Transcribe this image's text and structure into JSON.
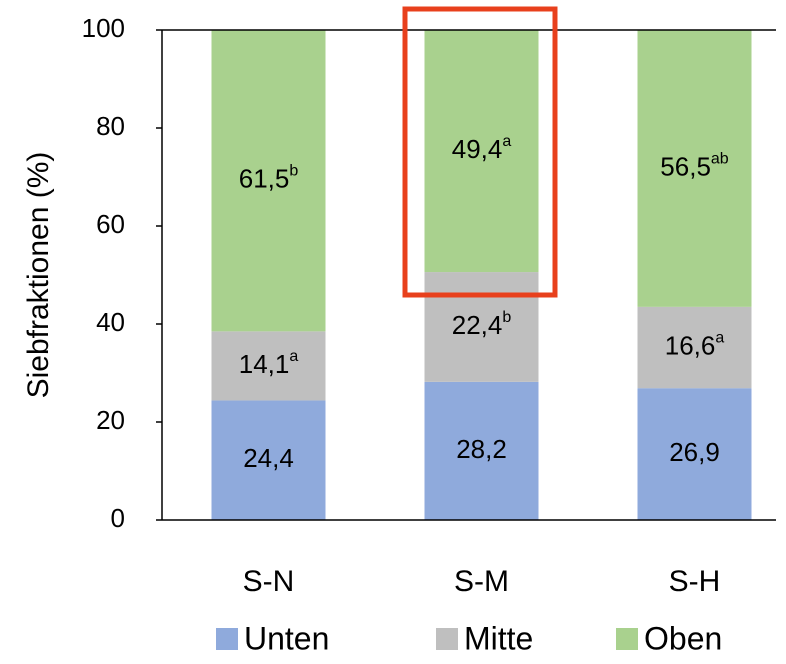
{
  "chart_data": {
    "type": "stacked_bar",
    "y_label": "Siebfraktionen (%)",
    "categories": [
      "S-N",
      "S-M",
      "S-H"
    ],
    "series": [
      {
        "name": "Unten",
        "color": "#8faadc",
        "values": [
          24.4,
          28.2,
          26.9
        ],
        "value_labels": [
          "24,4",
          "28,2",
          "26,9"
        ]
      },
      {
        "name": "Mitte",
        "color": "#bfbfbf",
        "values": [
          14.1,
          22.4,
          16.6
        ],
        "value_labels": [
          "14,1",
          "22,4",
          "16,6"
        ],
        "letters": [
          "a",
          "b",
          "a"
        ]
      },
      {
        "name": "Oben",
        "color": "#a9d18e",
        "values": [
          61.5,
          49.4,
          56.5
        ],
        "value_labels": [
          "61,5",
          "49,4",
          "56,5"
        ],
        "letters": [
          "b",
          "a",
          "ab"
        ]
      }
    ],
    "ylim": [
      0,
      100
    ],
    "yticks": [
      0,
      20,
      40,
      60,
      80,
      100
    ],
    "grid": false,
    "legend": "bottom"
  }
}
